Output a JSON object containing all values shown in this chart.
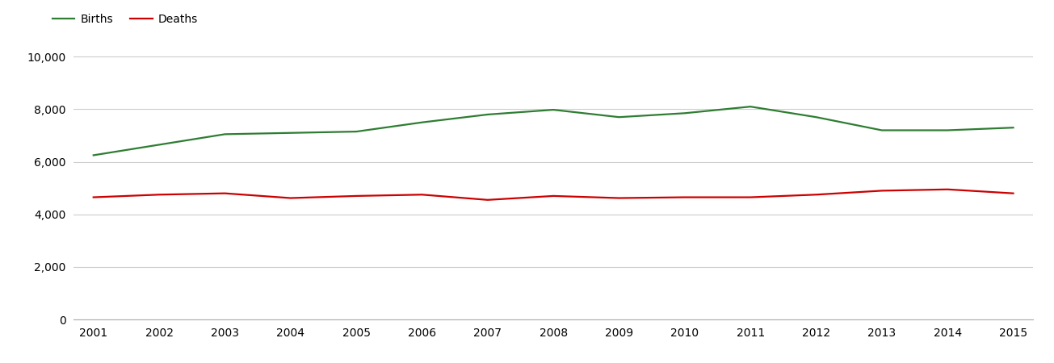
{
  "years": [
    2001,
    2002,
    2003,
    2004,
    2005,
    2006,
    2007,
    2008,
    2009,
    2010,
    2011,
    2012,
    2013,
    2014,
    2015
  ],
  "births": [
    6250,
    6650,
    7050,
    7100,
    7150,
    7500,
    7800,
    7980,
    7700,
    7850,
    8100,
    7700,
    7200,
    7200,
    7300
  ],
  "deaths": [
    4650,
    4750,
    4800,
    4620,
    4700,
    4750,
    4550,
    4700,
    4620,
    4650,
    4650,
    4750,
    4900,
    4950,
    4800
  ],
  "births_color": "#2e7d32",
  "deaths_color": "#cc0000",
  "background_color": "#ffffff",
  "grid_color": "#cccccc",
  "ylim": [
    0,
    10500
  ],
  "yticks": [
    0,
    2000,
    4000,
    6000,
    8000,
    10000
  ],
  "legend_labels": [
    "Births",
    "Deaths"
  ],
  "line_width": 1.6,
  "tick_fontsize": 10,
  "legend_fontsize": 10
}
